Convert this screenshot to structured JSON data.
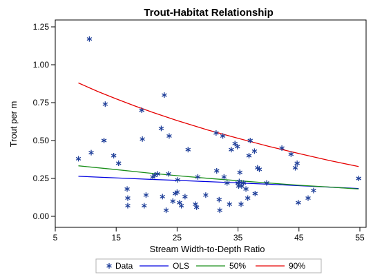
{
  "chart_data": {
    "type": "scatter",
    "title": "Trout-Habitat Relationship",
    "xlabel": "Stream Width-to-Depth Ratio",
    "ylabel": "Trout per m",
    "xlim": [
      5,
      55
    ],
    "ylim": [
      0,
      1.25
    ],
    "xticks": [
      "5",
      "15",
      "25",
      "35",
      "45",
      "55"
    ],
    "yticks": [
      "0.00",
      "0.25",
      "0.50",
      "0.75",
      "1.00",
      "1.25"
    ],
    "xtick_values": [
      5,
      15,
      25,
      35,
      45,
      55
    ],
    "ytick_values": [
      0,
      0.25,
      0.5,
      0.75,
      1.0,
      1.25
    ],
    "grid": false,
    "legend_position": "bottom",
    "points": {
      "name": "Data",
      "color": "#1f3f99",
      "x": [
        8.8,
        10.6,
        10.9,
        13.0,
        13.2,
        14.6,
        15.4,
        16.8,
        16.9,
        16.9,
        19.2,
        19.3,
        19.6,
        19.9,
        21.0,
        21.3,
        21.8,
        22.4,
        22.6,
        22.9,
        23.2,
        23.6,
        23.7,
        24.3,
        24.7,
        25.0,
        25.1,
        25.4,
        25.7,
        26.3,
        26.8,
        28.0,
        28.2,
        28.4,
        29.7,
        31.4,
        31.5,
        31.9,
        32.0,
        32.5,
        32.7,
        33.2,
        33.6,
        33.9,
        34.5,
        34.9,
        35.0,
        35.1,
        35.2,
        35.3,
        35.5,
        35.6,
        35.9,
        36.3,
        36.6,
        36.8,
        37.0,
        37.7,
        37.8,
        38.2,
        38.5,
        39.7,
        42.2,
        43.7,
        44.4,
        44.7,
        44.9,
        46.5,
        47.4,
        54.8
      ],
      "y": [
        0.38,
        1.17,
        0.42,
        0.5,
        0.74,
        0.4,
        0.35,
        0.18,
        0.12,
        0.07,
        0.7,
        0.51,
        0.07,
        0.14,
        0.26,
        0.27,
        0.28,
        0.58,
        0.13,
        0.8,
        0.04,
        0.28,
        0.53,
        0.1,
        0.15,
        0.16,
        0.24,
        0.09,
        0.07,
        0.13,
        0.44,
        0.08,
        0.06,
        0.26,
        0.14,
        0.55,
        0.3,
        0.11,
        0.04,
        0.53,
        0.26,
        0.22,
        0.08,
        0.44,
        0.48,
        0.46,
        0.22,
        0.2,
        0.23,
        0.29,
        0.08,
        0.2,
        0.22,
        0.18,
        0.12,
        0.4,
        0.5,
        0.43,
        0.15,
        0.32,
        0.31,
        0.22,
        0.45,
        0.41,
        0.32,
        0.35,
        0.09,
        0.12,
        0.17,
        0.25
      ]
    },
    "series": [
      {
        "name": "OLS",
        "color": "#0000e0",
        "x": [
          8.8,
          20,
          30,
          40,
          54.8
        ],
        "y": [
          0.264,
          0.245,
          0.229,
          0.212,
          0.183
        ]
      },
      {
        "name": "50%",
        "color": "#1a8f1a",
        "x": [
          8.8,
          15,
          20,
          25,
          30,
          35,
          40,
          45,
          50,
          54.8
        ],
        "y": [
          0.333,
          0.308,
          0.287,
          0.268,
          0.251,
          0.235,
          0.22,
          0.205,
          0.193,
          0.18
        ]
      },
      {
        "name": "90%",
        "color": "#e60000",
        "x": [
          8.8,
          12,
          15,
          18,
          21,
          25,
          30,
          35,
          40,
          45,
          50,
          54.8
        ],
        "y": [
          0.88,
          0.823,
          0.775,
          0.729,
          0.686,
          0.632,
          0.57,
          0.515,
          0.462,
          0.414,
          0.368,
          0.328
        ]
      }
    ],
    "legend": [
      "Data",
      "OLS",
      "50%",
      "90%"
    ]
  }
}
